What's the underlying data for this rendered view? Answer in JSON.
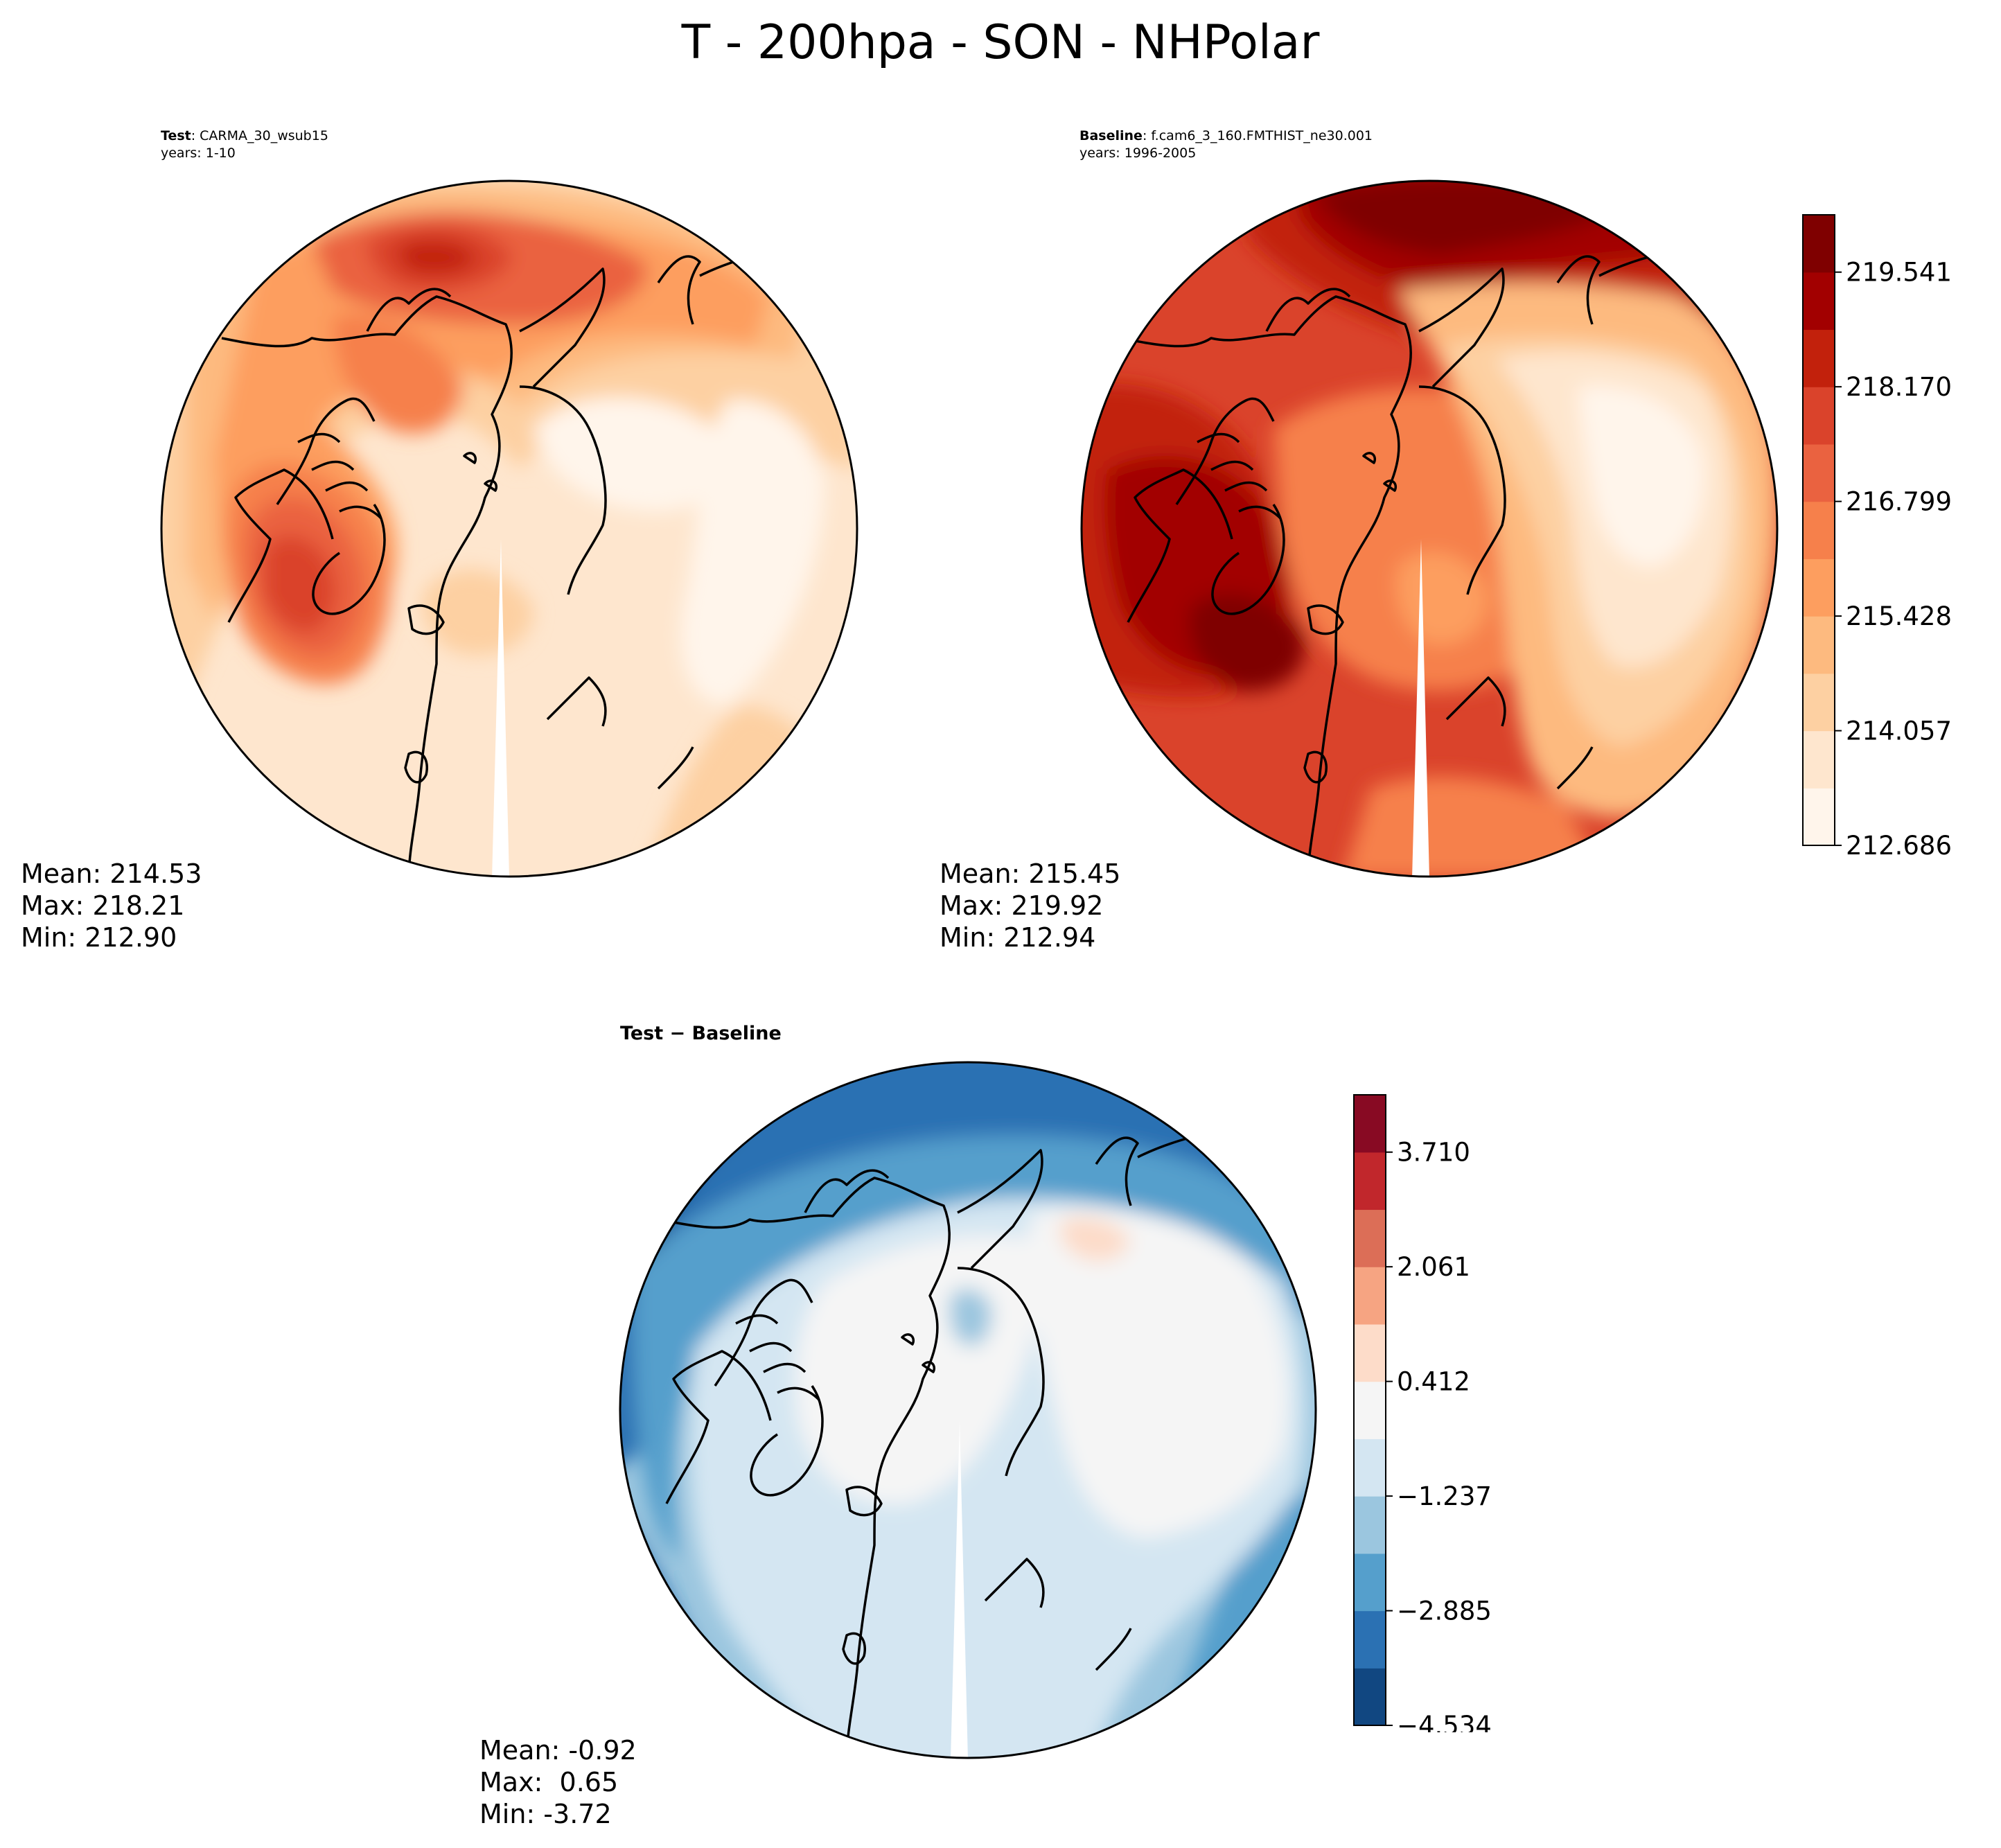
{
  "title": "T - 200hpa - SON - NHPolar",
  "colors": {
    "seq": [
      "#fff5eb",
      "#fee6ce",
      "#fdd0a2",
      "#fdba7f",
      "#fd9e5f",
      "#f6804b",
      "#ea6240",
      "#da432b",
      "#c2210c",
      "#a20000",
      "#7f0000"
    ],
    "div": [
      "#114781",
      "#2b71b3",
      "#559fcc",
      "#9bc6df",
      "#d4e6f2",
      "#f5f5f5",
      "#fddcc9",
      "#f6a482",
      "#dc6e57",
      "#c1272c",
      "#880a23"
    ],
    "coast": "#000000",
    "frame": "#000000"
  },
  "chart_data": [
    {
      "id": "test",
      "type": "heatmap",
      "projection": "north-polar-stereographic",
      "subtitle_bold": "Test",
      "subtitle_rest": ": CARMA_30_wsub15",
      "subtitle_line2": "years: 1-10",
      "stats": {
        "mean": "Mean: 214.53",
        "max": "Max: 218.21",
        "min": "Min: 212.90"
      },
      "levels": [
        212.686,
        213.372,
        214.057,
        214.743,
        215.428,
        216.114,
        216.799,
        217.485,
        218.17,
        218.856,
        219.541,
        220.227
      ],
      "colormap": "OrRd"
    },
    {
      "id": "baseline",
      "type": "heatmap",
      "projection": "north-polar-stereographic",
      "subtitle_bold": "Baseline",
      "subtitle_rest": ": f.cam6_3_160.FMTHIST_ne30.001",
      "subtitle_line2": "years: 1996-2005",
      "stats": {
        "mean": "Mean: 215.45",
        "max": "Max: 219.92",
        "min": "Min: 212.94"
      },
      "colorbar_ticks": [
        "219.541",
        "218.170",
        "216.799",
        "215.428",
        "214.057",
        "212.686"
      ],
      "colormap": "OrRd"
    },
    {
      "id": "diff",
      "type": "heatmap",
      "projection": "north-polar-stereographic",
      "subtitle_bold": "Test − Baseline",
      "stats": {
        "mean": "Mean: -0.92",
        "max": "Max:  0.65",
        "min": "Min: -3.72"
      },
      "levels": [
        -4.534,
        -3.71,
        -2.885,
        -2.061,
        -1.237,
        -0.412,
        0.412,
        1.237,
        2.061,
        2.885,
        3.71,
        4.534
      ],
      "colorbar_ticks": [
        "3.710",
        "2.061",
        "0.412",
        "−1.237",
        "−2.885",
        "−4.534"
      ],
      "colormap": "RdBu_r"
    }
  ]
}
